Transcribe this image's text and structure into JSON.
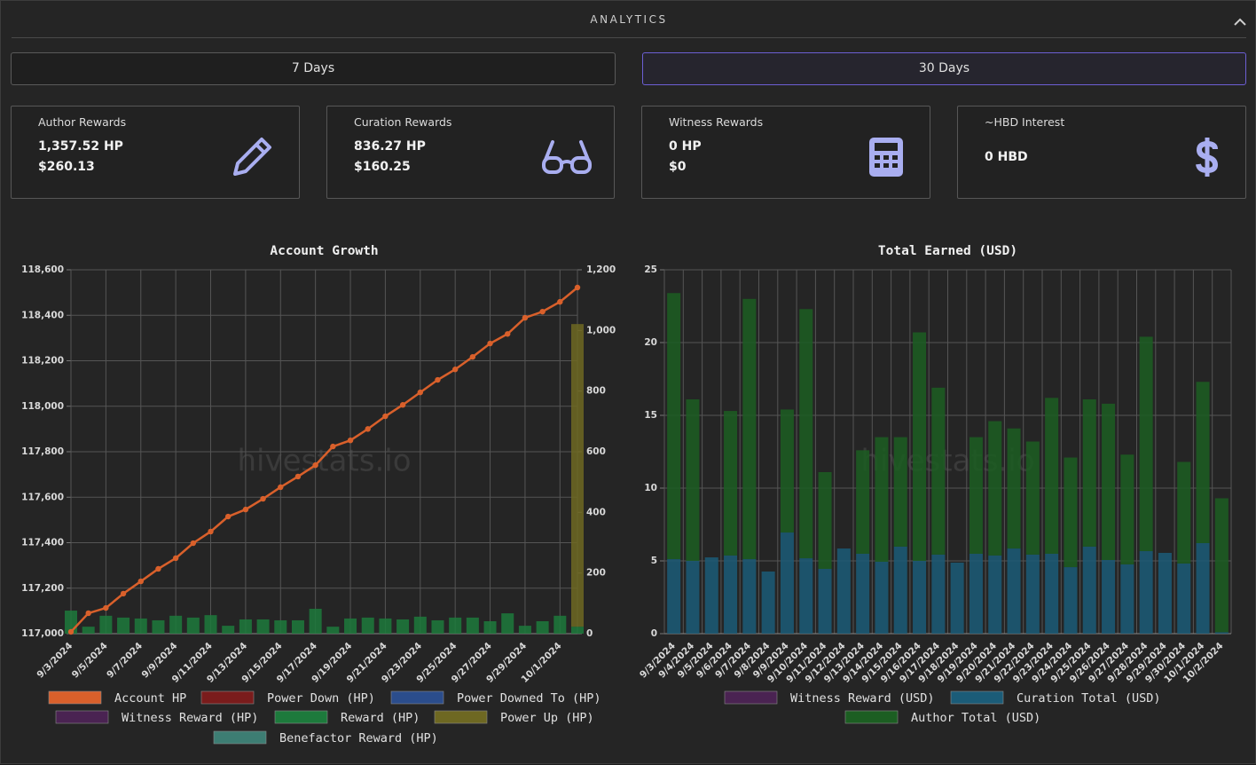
{
  "header": {
    "title": "ANALYTICS"
  },
  "buttons": [
    "7 Days",
    "30 Days"
  ],
  "cards": [
    {
      "title": "Author Rewards",
      "lines": [
        "1,357.52 HP",
        "$260.13"
      ]
    },
    {
      "title": "Curation Rewards",
      "lines": [
        "836.27 HP",
        "$160.25"
      ]
    },
    {
      "title": "Witness Rewards",
      "lines": [
        "0 HP",
        "$0"
      ]
    },
    {
      "title": "~HBD Interest",
      "lines": [
        "0 HBD"
      ]
    }
  ],
  "chart_data": [
    {
      "type": "bar",
      "title": "Account Growth",
      "watermark": "hivestats.io",
      "stacked": true,
      "grid": true,
      "categories": [
        "9/3/2024",
        null,
        "9/5/2024",
        null,
        "9/7/2024",
        null,
        "9/9/2024",
        null,
        "9/11/2024",
        null,
        "9/13/2024",
        null,
        "9/15/2024",
        null,
        "9/17/2024",
        null,
        "9/19/2024",
        null,
        "9/21/2024",
        null,
        "9/23/2024",
        null,
        "9/25/2024",
        null,
        "9/27/2024",
        null,
        "9/29/2024",
        null,
        "10/1/2024",
        null
      ],
      "ylim": [
        117000,
        118600
      ],
      "yticks": [
        {
          "value": 117000,
          "label": "117,000"
        },
        {
          "value": 117200,
          "label": "117,200"
        },
        {
          "value": 117400,
          "label": "117,400"
        },
        {
          "value": 117600,
          "label": "117,600"
        },
        {
          "value": 117800,
          "label": "117,800"
        },
        {
          "value": 118000,
          "label": "118,000"
        },
        {
          "value": 118200,
          "label": "118,200"
        },
        {
          "value": 118400,
          "label": "118,400"
        },
        {
          "value": 118600,
          "label": "118,600"
        }
      ],
      "y2lim": [
        0,
        1200
      ],
      "y2ticks": [
        0,
        200,
        400,
        600,
        800,
        {
          "value": 1000,
          "label": "1,000"
        },
        {
          "value": 1200,
          "label": "1,200"
        }
      ],
      "series": [
        {
          "name": "Account HP",
          "type": "line",
          "color": "#d9602b",
          "values": [
            117008,
            117090,
            117113,
            117176,
            117230,
            117285,
            117332,
            117398,
            117449,
            117515,
            117546,
            117593,
            117644,
            117691,
            117741,
            117823,
            117850,
            117900,
            117956,
            118006,
            118061,
            118116,
            118162,
            118217,
            118276,
            118318,
            118389,
            118416,
            118459,
            118522
          ]
        },
        {
          "name": "Power Down (HP)",
          "color": "#7a1c1c"
        },
        {
          "name": "Power Downed To (HP)",
          "color": "#2b4d8c"
        },
        {
          "name": "Witness Reward (HP)",
          "color": "#4a2352"
        },
        {
          "name": "Reward (HP)",
          "color": "#1d7a3c",
          "axis": "y2",
          "values": [
            76,
            23,
            59,
            53,
            50,
            44,
            59,
            53,
            61,
            26,
            47,
            47,
            44,
            44,
            82,
            23,
            50,
            53,
            50,
            47,
            56,
            44,
            53,
            53,
            41,
            67,
            26,
            41,
            59,
            23
          ]
        },
        {
          "name": "Power Up (HP)",
          "color": "#6e6822",
          "axis": "y2",
          "values": [
            0,
            0,
            0,
            0,
            0,
            0,
            0,
            0,
            0,
            0,
            0,
            0,
            0,
            0,
            0,
            0,
            0,
            0,
            0,
            0,
            0,
            0,
            0,
            0,
            0,
            0,
            0,
            0,
            0,
            998
          ]
        },
        {
          "name": "Benefactor Reward (HP)",
          "color": "#3d7d73"
        }
      ]
    },
    {
      "type": "bar",
      "title": "Total Earned (USD)",
      "watermark": "hivestats.io",
      "stacked": true,
      "grid": true,
      "categories": [
        "9/3/2024",
        "9/4/2024",
        "9/5/2024",
        "9/6/2024",
        "9/7/2024",
        "9/8/2024",
        "9/9/2024",
        "9/10/2024",
        "9/11/2024",
        "9/12/2024",
        "9/13/2024",
        "9/14/2024",
        "9/15/2024",
        "9/16/2024",
        "9/17/2024",
        "9/18/2024",
        "9/19/2024",
        "9/20/2024",
        "9/21/2024",
        "9/22/2024",
        "9/23/2024",
        "9/24/2024",
        "9/25/2024",
        "9/26/2024",
        "9/27/2024",
        "9/28/2024",
        "9/29/2024",
        "9/30/2024",
        "10/1/2024",
        "10/2/2024"
      ],
      "ylim": [
        0,
        25
      ],
      "yticks": [
        0,
        5,
        10,
        15,
        20,
        25
      ],
      "series": [
        {
          "name": "Witness Reward (USD)",
          "color": "#4a2352"
        },
        {
          "name": "Curation Total (USD)",
          "color": "#1b5c78",
          "values": [
            5.12,
            5.0,
            5.24,
            5.37,
            5.12,
            4.27,
            6.95,
            5.18,
            4.45,
            5.85,
            5.49,
            4.94,
            5.98,
            5.0,
            5.43,
            4.88,
            5.49,
            5.37,
            5.85,
            5.43,
            5.49,
            4.57,
            5.98,
            5.06,
            4.76,
            5.67,
            5.55,
            4.82,
            6.22,
            0.1
          ]
        },
        {
          "name": "Author Total (USD)",
          "color": "#1c5e22",
          "values": [
            18.28,
            11.1,
            0,
            9.93,
            17.88,
            0,
            8.45,
            17.12,
            6.65,
            0,
            7.11,
            8.56,
            7.52,
            15.7,
            11.47,
            0,
            8.01,
            9.23,
            8.25,
            7.77,
            10.71,
            7.53,
            10.12,
            10.74,
            7.54,
            14.73,
            0,
            6.98,
            11.08,
            9.2
          ]
        }
      ]
    }
  ]
}
